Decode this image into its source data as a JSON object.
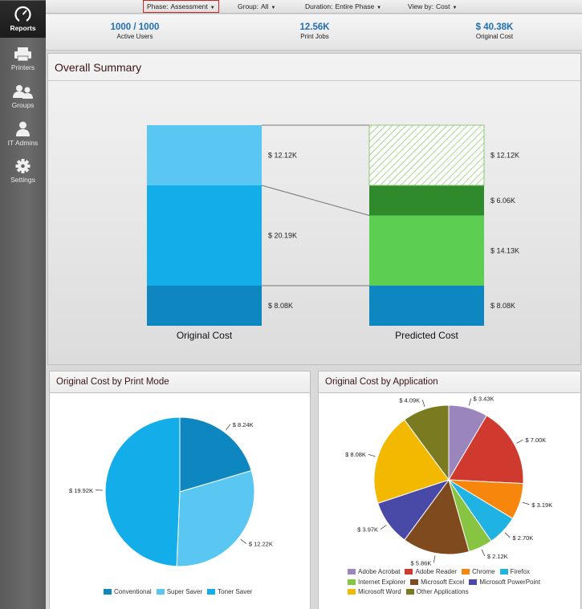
{
  "sidebar": {
    "items": [
      {
        "label": "Reports",
        "icon": "gauge-icon"
      },
      {
        "label": "Printers",
        "icon": "printer-icon"
      },
      {
        "label": "Groups",
        "icon": "users-icon"
      },
      {
        "label": "IT Admins",
        "icon": "user-icon"
      },
      {
        "label": "Settings",
        "icon": "gear-icon"
      }
    ]
  },
  "filters": {
    "phase": {
      "label": "Phase:",
      "value": "Assessment"
    },
    "group": {
      "label": "Group:",
      "value": "All"
    },
    "duration": {
      "label": "Duration:",
      "value": "Entire Phase"
    },
    "viewby": {
      "label": "View by:",
      "value": "Cost"
    }
  },
  "stats": [
    {
      "value": "1000 / 1000",
      "label": "Active Users"
    },
    {
      "value": "12.56K",
      "label": "Print Jobs"
    },
    {
      "value": "$ 40.38K",
      "label": "Original Cost"
    }
  ],
  "summary": {
    "title": "Overall Summary",
    "chart_data": {
      "type": "bar",
      "stacked": true,
      "categories": [
        "Original Cost",
        "Predicted Cost"
      ],
      "unit": "K",
      "bars": [
        {
          "category": "Original Cost",
          "segments": [
            {
              "value": 8.08,
              "label": "$ 8.08K",
              "color": "#0e86c0"
            },
            {
              "value": 20.19,
              "label": "$ 20.19K",
              "color": "#13aee9"
            },
            {
              "value": 12.12,
              "label": "$ 12.12K",
              "color": "#5ac6f2"
            }
          ]
        },
        {
          "category": "Predicted Cost",
          "segments": [
            {
              "value": 8.08,
              "label": "$ 8.08K",
              "color": "#0e86c0"
            },
            {
              "value": 14.13,
              "label": "$ 14.13K",
              "color": "#5cce52"
            },
            {
              "value": 6.06,
              "label": "$ 6.06K",
              "color": "#2e8a2a"
            },
            {
              "value": 12.12,
              "label": "$ 12.12K",
              "color": "hatch-green"
            }
          ]
        }
      ]
    }
  },
  "mode_chart": {
    "title": "Original Cost by Print Mode",
    "chart_data": {
      "type": "pie",
      "slices": [
        {
          "name": "Conventional",
          "value": 8.24,
          "label": "$ 8.24K",
          "color": "#0e86c0"
        },
        {
          "name": "Super Saver",
          "value": 12.22,
          "label": "$ 12.22K",
          "color": "#5ac6f2"
        },
        {
          "name": "Toner Saver",
          "value": 19.92,
          "label": "$ 19.92K",
          "color": "#13aee9"
        }
      ]
    }
  },
  "app_chart": {
    "title": "Original Cost by Application",
    "chart_data": {
      "type": "pie",
      "slices": [
        {
          "name": "Adobe Acrobat",
          "value": 3.43,
          "label": "$ 3.43K",
          "color": "#9a86bd"
        },
        {
          "name": "Adobe Reader",
          "value": 7.0,
          "label": "$ 7.00K",
          "color": "#d03a2e"
        },
        {
          "name": "Chrome",
          "value": 3.19,
          "label": "$ 3.19K",
          "color": "#f7860c"
        },
        {
          "name": "Firefox",
          "value": 2.7,
          "label": "$ 2.70K",
          "color": "#1eb3e2"
        },
        {
          "name": "Internet Explorer",
          "value": 2.12,
          "label": "$ 2.12K",
          "color": "#86c441"
        },
        {
          "name": "Microsoft Excel",
          "value": 5.86,
          "label": "$ 5.86K",
          "color": "#7e4a1e"
        },
        {
          "name": "Microsoft PowerPoint",
          "value": 3.97,
          "label": "$ 3.97K",
          "color": "#4949a8"
        },
        {
          "name": "Microsoft Word",
          "value": 8.08,
          "label": "$ 8.08K",
          "color": "#f3b800"
        },
        {
          "name": "Other Applications",
          "value": 4.09,
          "label": "$ 4.09K",
          "color": "#7a7a20"
        }
      ]
    }
  }
}
